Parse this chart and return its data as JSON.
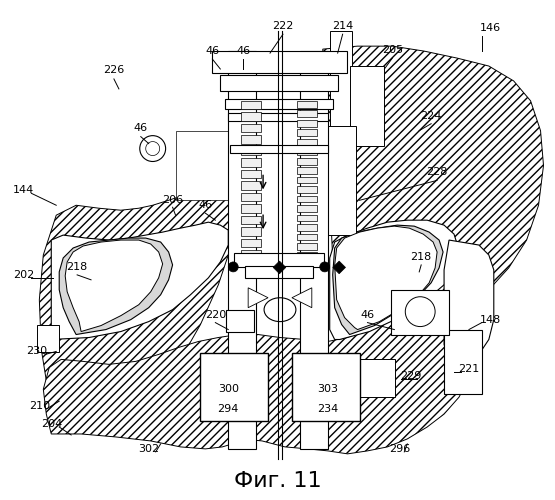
{
  "title": "Фиг. 11",
  "title_fontsize": 16,
  "fig_width": 5.55,
  "fig_height": 5.0,
  "dpi": 100,
  "bg_color": "#ffffff",
  "line_color": "#000000"
}
